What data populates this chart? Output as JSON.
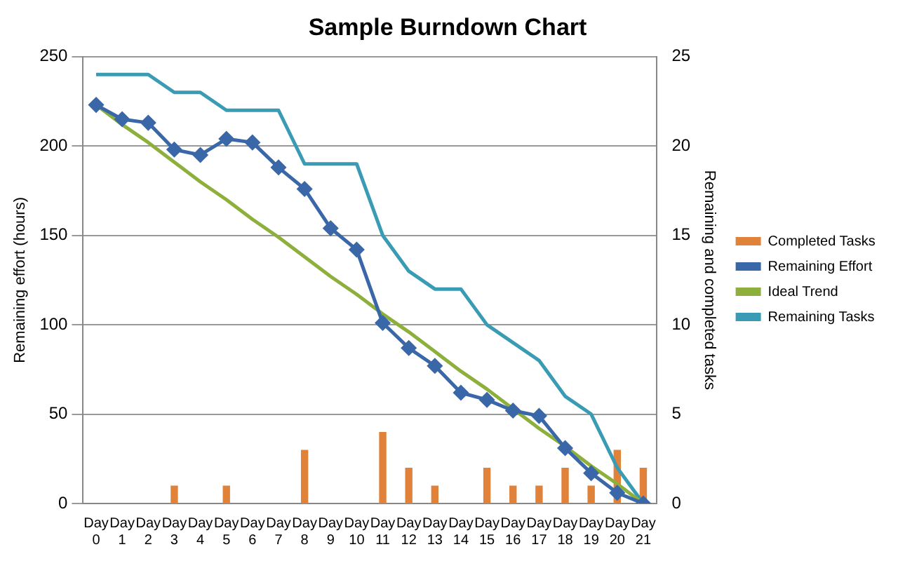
{
  "chart_data": {
    "type": "bar",
    "title": "Sample Burndown Chart",
    "ylabel": "Remaining effort (hours)",
    "y2label": "Remaining and completed tasks",
    "categories": [
      "Day 0",
      "Day 1",
      "Day 2",
      "Day 3",
      "Day 4",
      "Day 5",
      "Day 6",
      "Day 7",
      "Day 8",
      "Day 9",
      "Day 10",
      "Day 11",
      "Day 12",
      "Day 13",
      "Day 14",
      "Day 15",
      "Day 16",
      "Day 17",
      "Day 18",
      "Day 19",
      "Day 20",
      "Day 21"
    ],
    "series": [
      {
        "name": "Completed Tasks",
        "axis": "y2",
        "color": "#e0823a",
        "values": [
          0,
          0,
          0,
          1,
          0,
          1,
          0,
          0,
          3,
          0,
          0,
          4,
          2,
          1,
          0,
          2,
          1,
          1,
          2,
          1,
          3,
          2
        ]
      },
      {
        "name": "Remaining Effort",
        "type": "line",
        "marker": "diamond",
        "color": "#3a67a8",
        "values": [
          223,
          215,
          213,
          198,
          195,
          204,
          202,
          188,
          176,
          154,
          142,
          101,
          87,
          77,
          62,
          58,
          52,
          49,
          31,
          17,
          6,
          0
        ]
      },
      {
        "name": "Ideal Trend",
        "type": "line",
        "marker": "none",
        "color": "#8db03c",
        "values": [
          223,
          212,
          202,
          191,
          180,
          170,
          159,
          149,
          138,
          127,
          117,
          106,
          96,
          85,
          74,
          64,
          53,
          42,
          32,
          21,
          11,
          0
        ]
      },
      {
        "name": "Remaining Tasks",
        "type": "line",
        "marker": "none",
        "axis": "y2",
        "color": "#3a9bb5",
        "values": [
          24,
          24,
          24,
          23,
          23,
          22,
          22,
          22,
          19,
          19,
          19,
          15,
          13,
          12,
          12,
          10,
          9,
          8,
          6,
          5,
          2,
          0
        ]
      }
    ],
    "ylim": [
      0,
      250
    ],
    "yticks": [
      0,
      50,
      100,
      150,
      200,
      250
    ],
    "y2lim": [
      0,
      25
    ],
    "y2ticks": [
      0,
      5,
      10,
      15,
      20,
      25
    ],
    "grid": "y",
    "legend": "right"
  }
}
